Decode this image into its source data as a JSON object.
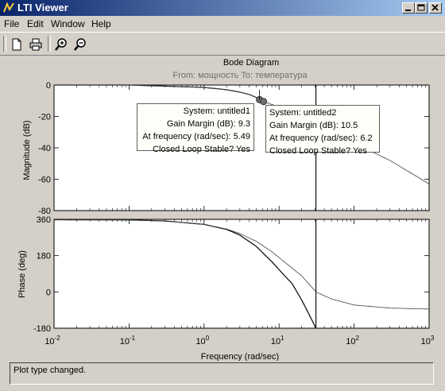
{
  "window": {
    "title": "LTI Viewer"
  },
  "menu": {
    "items": [
      {
        "label": "File"
      },
      {
        "label": "Edit"
      },
      {
        "label": "Window"
      },
      {
        "label": "Help"
      }
    ]
  },
  "toolbar": {
    "buttons": [
      {
        "icon": "new-file-icon"
      },
      {
        "icon": "print-icon"
      },
      {
        "icon": "zoom-in-icon"
      },
      {
        "icon": "zoom-out-icon"
      }
    ]
  },
  "plot": {
    "title": "Bode Diagram",
    "subtitle": "From: мощность  To: температура",
    "magnitude_ylabel": "Magnitude (dB)",
    "phase_ylabel": "Phase (deg)",
    "xlabel": "Frequency  (rad/sec)"
  },
  "datatips": [
    {
      "lines": [
        "System: untitled1",
        "Gain Margin (dB): 9.3",
        "At frequency (rad/sec): 5.49",
        "Closed Loop Stable? Yes"
      ]
    },
    {
      "lines": [
        "System: untitled2",
        "Gain Margin (dB): 10.5",
        "At frequency (rad/sec): 6.2",
        "Closed Loop Stable? Yes"
      ]
    }
  ],
  "status": {
    "text": "Plot type changed."
  },
  "chart_data": [
    {
      "type": "line",
      "panel": "magnitude",
      "xscale": "log",
      "xlim": [
        0.01,
        1000
      ],
      "ylim": [
        -80,
        0
      ],
      "yticks": [
        0,
        -20,
        -40,
        -60,
        -80
      ],
      "ylabel": "Magnitude (dB)",
      "series": [
        {
          "x": [
            0.01,
            0.1,
            1,
            2,
            3,
            4,
            5,
            5.49
          ],
          "y": [
            0,
            0,
            -1.5,
            -3,
            -4.5,
            -6,
            -8,
            -9.3
          ]
        },
        {
          "x": [
            0.01,
            0.1,
            1,
            2,
            3,
            4,
            5,
            6.2,
            10,
            30,
            100,
            300,
            1000
          ],
          "y": [
            0,
            0,
            -1.5,
            -3,
            -4.5,
            -6,
            -8,
            -10.5,
            -14,
            -25,
            -37,
            -48,
            -63
          ]
        }
      ],
      "vline_x": 31
    },
    {
      "type": "line",
      "panel": "phase",
      "xscale": "log",
      "xlim": [
        0.01,
        1000
      ],
      "ylim": [
        -180,
        360
      ],
      "yticks": [
        360,
        180,
        0,
        -180
      ],
      "ylabel": "Phase (deg)",
      "xlabel": "Frequency  (rad/sec)",
      "xticks": [
        "10^-2",
        "10^-1",
        "10^0",
        "10^1",
        "10^2",
        "10^3"
      ],
      "series": [
        {
          "x": [
            0.01,
            0.1,
            0.3,
            1,
            2,
            3,
            5,
            8,
            10,
            15,
            20,
            25,
            31
          ],
          "y": [
            358,
            357,
            352,
            335,
            310,
            282,
            225,
            150,
            110,
            40,
            -40,
            -110,
            -180
          ]
        },
        {
          "x": [
            0.01,
            0.1,
            0.3,
            1,
            2,
            3,
            5,
            8,
            10,
            20,
            31,
            50,
            100,
            300,
            1000
          ],
          "y": [
            358,
            357,
            352,
            335,
            312,
            290,
            250,
            200,
            170,
            80,
            0,
            -35,
            -65,
            -80,
            -85
          ]
        }
      ],
      "vline_x": 31
    }
  ]
}
